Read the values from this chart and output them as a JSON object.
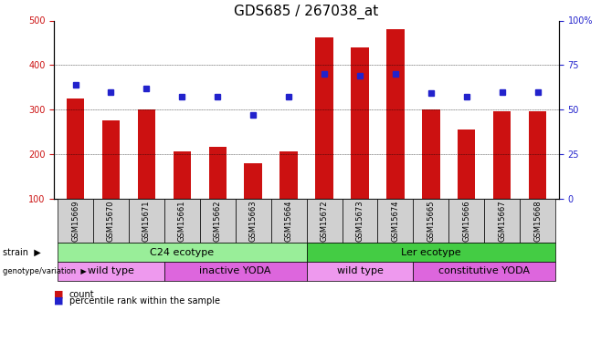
{
  "title": "GDS685 / 267038_at",
  "samples": [
    "GSM15669",
    "GSM15670",
    "GSM15671",
    "GSM15661",
    "GSM15662",
    "GSM15663",
    "GSM15664",
    "GSM15672",
    "GSM15673",
    "GSM15674",
    "GSM15665",
    "GSM15666",
    "GSM15667",
    "GSM15668"
  ],
  "counts": [
    325,
    275,
    300,
    205,
    215,
    178,
    205,
    462,
    440,
    480,
    300,
    255,
    295,
    295
  ],
  "percentiles": [
    64,
    60,
    62,
    57,
    57,
    47,
    57,
    70,
    69,
    70,
    59,
    57,
    60,
    60
  ],
  "ylim_left": [
    100,
    500
  ],
  "ylim_right": [
    0,
    100
  ],
  "yticks_left": [
    100,
    200,
    300,
    400,
    500
  ],
  "yticks_right": [
    0,
    25,
    50,
    75,
    100
  ],
  "bar_color": "#cc1111",
  "dot_color": "#2222cc",
  "grid_color": "#000000",
  "strain_labels": [
    {
      "text": "C24 ecotype",
      "start": 0,
      "end": 6,
      "color": "#99ee99"
    },
    {
      "text": "Ler ecotype",
      "start": 7,
      "end": 13,
      "color": "#44cc44"
    }
  ],
  "genotype_labels": [
    {
      "text": "wild type",
      "start": 0,
      "end": 2,
      "color": "#ee99ee"
    },
    {
      "text": "inactive YODA",
      "start": 3,
      "end": 6,
      "color": "#dd66dd"
    },
    {
      "text": "wild type",
      "start": 7,
      "end": 9,
      "color": "#ee99ee"
    },
    {
      "text": "constitutive YODA",
      "start": 10,
      "end": 13,
      "color": "#dd66dd"
    }
  ],
  "legend_count_color": "#cc1111",
  "legend_dot_color": "#2222cc",
  "title_fontsize": 11,
  "tick_fontsize": 7,
  "label_fontsize": 8
}
